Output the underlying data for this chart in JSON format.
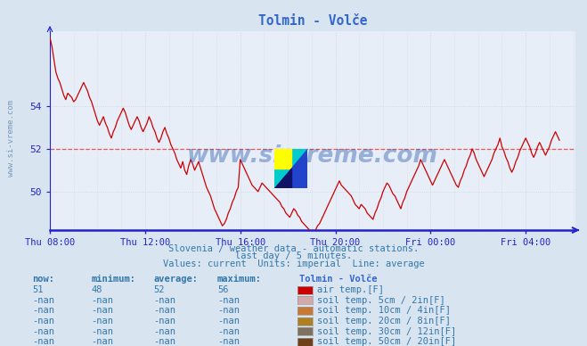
{
  "title": "Tolmin - Volče",
  "bg_color": "#d8e4f0",
  "plot_bg_color": "#e8eef8",
  "line_color": "#cc0000",
  "grid_color": "#c8d4e0",
  "axis_color": "#2222cc",
  "text_color": "#3377aa",
  "title_color": "#3366cc",
  "ylabel_text": "www.si-vreme.com",
  "subtitle1": "Slovenia / weather data - automatic stations.",
  "subtitle2": "last day / 5 minutes.",
  "subtitle3": "Values: current  Units: imperial  Line: average",
  "table_header": "Tolmin - Volče",
  "col_labels": [
    "now:",
    "minimum:",
    "average:",
    "maximum:"
  ],
  "row1_vals": [
    "51",
    "48",
    "52",
    "56"
  ],
  "row_nan_vals": [
    "-nan",
    "-nan",
    "-nan",
    "-nan"
  ],
  "legend_items": [
    {
      "label": "air temp.[F]",
      "color": "#cc0000"
    },
    {
      "label": "soil temp. 5cm / 2in[F]",
      "color": "#d4a8a8"
    },
    {
      "label": "soil temp. 10cm / 4in[F]",
      "color": "#c87832"
    },
    {
      "label": "soil temp. 20cm / 8in[F]",
      "color": "#b08020"
    },
    {
      "label": "soil temp. 30cm / 12in[F]",
      "color": "#807060"
    },
    {
      "label": "soil temp. 50cm / 20in[F]",
      "color": "#704018"
    }
  ],
  "xticklabels": [
    "Thu 08:00",
    "Thu 12:00",
    "Thu 16:00",
    "Thu 20:00",
    "Fri 00:00",
    "Fri 04:00"
  ],
  "xtick_positions": [
    0,
    48,
    96,
    144,
    192,
    240
  ],
  "yticks": [
    50,
    52,
    54
  ],
  "ylim": [
    48.2,
    57.5
  ],
  "xlim": [
    0,
    265
  ],
  "avg_value": 52.0,
  "watermark_text": "www.si-vreme.com",
  "y_values": [
    57.2,
    56.8,
    56.2,
    55.6,
    55.3,
    55.1,
    54.8,
    54.5,
    54.3,
    54.6,
    54.5,
    54.4,
    54.2,
    54.3,
    54.5,
    54.7,
    54.9,
    55.1,
    54.9,
    54.7,
    54.4,
    54.2,
    53.9,
    53.6,
    53.3,
    53.1,
    53.3,
    53.5,
    53.2,
    53.0,
    52.7,
    52.5,
    52.8,
    53.0,
    53.3,
    53.5,
    53.7,
    53.9,
    53.7,
    53.4,
    53.1,
    52.9,
    53.1,
    53.3,
    53.5,
    53.3,
    53.0,
    52.8,
    53.0,
    53.2,
    53.5,
    53.3,
    53.0,
    52.8,
    52.5,
    52.3,
    52.5,
    52.8,
    53.0,
    52.7,
    52.5,
    52.2,
    52.0,
    51.8,
    51.5,
    51.3,
    51.1,
    51.4,
    51.0,
    50.8,
    51.2,
    51.5,
    51.3,
    51.0,
    51.2,
    51.4,
    51.1,
    50.8,
    50.5,
    50.2,
    50.0,
    49.8,
    49.5,
    49.2,
    49.0,
    48.8,
    48.6,
    48.4,
    48.5,
    48.7,
    49.0,
    49.2,
    49.5,
    49.7,
    50.0,
    50.2,
    51.5,
    51.3,
    51.1,
    50.9,
    50.7,
    50.5,
    50.3,
    50.2,
    50.1,
    50.0,
    50.2,
    50.4,
    50.3,
    50.2,
    50.1,
    50.0,
    49.9,
    49.8,
    49.7,
    49.6,
    49.5,
    49.3,
    49.2,
    49.0,
    48.9,
    48.8,
    49.0,
    49.2,
    49.1,
    48.9,
    48.8,
    48.6,
    48.5,
    48.4,
    48.3,
    48.2,
    48.1,
    48.0,
    48.2,
    48.4,
    48.5,
    48.7,
    48.9,
    49.1,
    49.3,
    49.5,
    49.7,
    49.9,
    50.1,
    50.3,
    50.5,
    50.3,
    50.2,
    50.1,
    50.0,
    49.9,
    49.8,
    49.6,
    49.4,
    49.3,
    49.2,
    49.4,
    49.3,
    49.2,
    49.0,
    48.9,
    48.8,
    48.7,
    49.0,
    49.2,
    49.5,
    49.7,
    50.0,
    50.2,
    50.4,
    50.3,
    50.1,
    49.9,
    49.8,
    49.6,
    49.4,
    49.2,
    49.5,
    49.7,
    50.0,
    50.2,
    50.4,
    50.6,
    50.8,
    51.0,
    51.2,
    51.5,
    51.3,
    51.1,
    50.9,
    50.7,
    50.5,
    50.3,
    50.5,
    50.7,
    50.9,
    51.1,
    51.3,
    51.5,
    51.3,
    51.1,
    50.9,
    50.7,
    50.5,
    50.3,
    50.2,
    50.5,
    50.7,
    51.0,
    51.2,
    51.5,
    51.7,
    52.0,
    51.8,
    51.5,
    51.3,
    51.1,
    50.9,
    50.7,
    50.9,
    51.1,
    51.3,
    51.5,
    51.8,
    52.0,
    52.2,
    52.5,
    52.1,
    51.9,
    51.6,
    51.4,
    51.1,
    50.9,
    51.1,
    51.4,
    51.6,
    51.9,
    52.1,
    52.3,
    52.5,
    52.3,
    52.1,
    51.8,
    51.6,
    51.8,
    52.1,
    52.3,
    52.1,
    51.9,
    51.7,
    51.9,
    52.1,
    52.4,
    52.6,
    52.8,
    52.6,
    52.4
  ]
}
